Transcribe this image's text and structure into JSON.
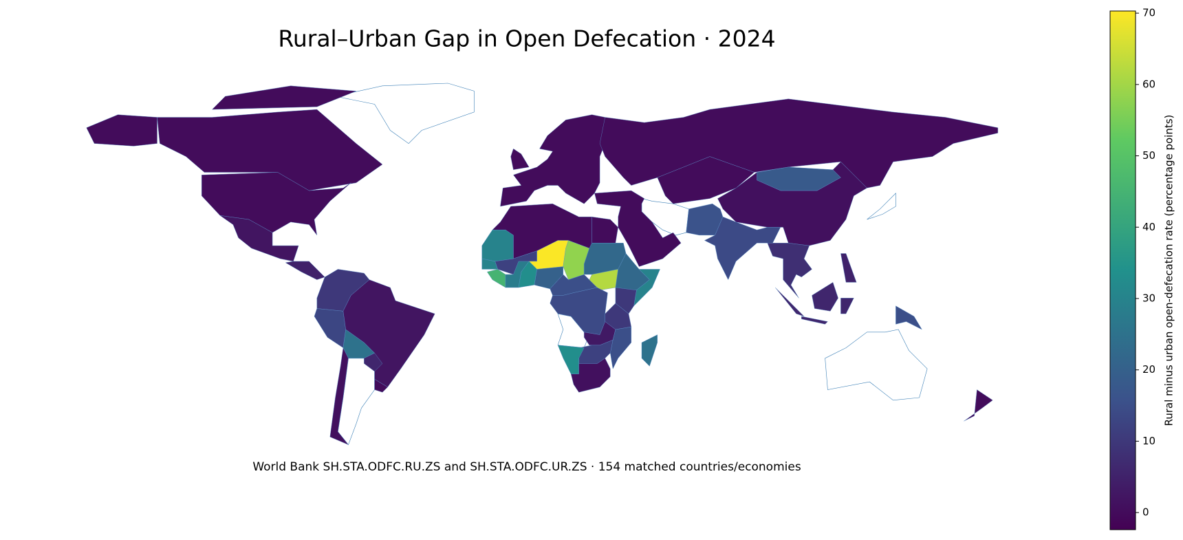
{
  "chart_data": {
    "type": "choropleth",
    "title": "Rural–Urban Gap in Open Defecation · 2024",
    "subtitle": "World Bank SH.STA.ODFC.RU.ZS and SH.STA.ODFC.UR.ZS · 154 matched countries/economies",
    "colorbar_label": "Rural minus urban open-defecation rate (percentage points)",
    "colormap": "viridis",
    "values": [
      0,
      0,
      2,
      5,
      10,
      13,
      2,
      25,
      6,
      1,
      0,
      0,
      0,
      0,
      0,
      18,
      1,
      0,
      16,
      14,
      8,
      6,
      15,
      5,
      0,
      0,
      0,
      30,
      12,
      70,
      58,
      30,
      45,
      28,
      33,
      20,
      15,
      22,
      62,
      22,
      30,
      10,
      14,
      10,
      3,
      15,
      12,
      33,
      1,
      25
    ],
    "clim": [
      -2.4,
      70.3
    ],
    "cticks": [
      0,
      10,
      20,
      30,
      40,
      50,
      60,
      70
    ]
  }
}
